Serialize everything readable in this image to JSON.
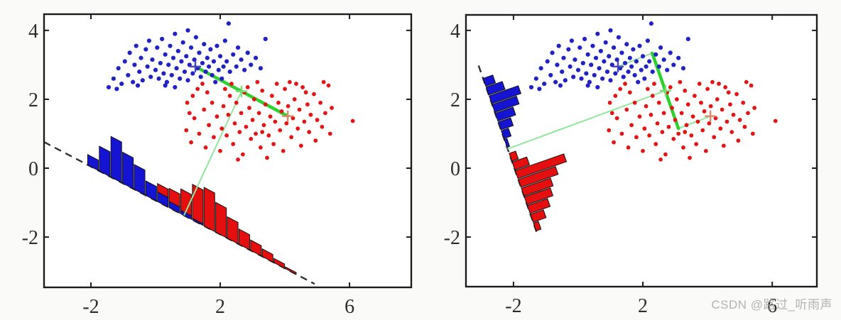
{
  "watermark": {
    "text": "CSDN @路过_听雨声"
  },
  "colors": {
    "blue_point": "#2121c4",
    "red_point": "#e41414",
    "bar_blue": "#1414d2",
    "bar_red": "#e60f0f",
    "bar_edge": "#141414",
    "dashed_line": "#323232",
    "thick_green": "#2dd12d",
    "thin_green": "#8fe89b",
    "blue_cross": "#4a44bd",
    "red_cross": "#d98a6a",
    "mid_cross": "#79dc79",
    "frame": "#1c1c1c"
  },
  "shared_points": {
    "blue": [
      [
        -1.45,
        2.35
      ],
      [
        -1.3,
        2.6
      ],
      [
        -1.15,
        2.9
      ],
      [
        -1.05,
        2.45
      ],
      [
        -0.95,
        3.1
      ],
      [
        -0.85,
        2.7
      ],
      [
        -0.8,
        3.35
      ],
      [
        -0.7,
        2.5
      ],
      [
        -0.65,
        3.0
      ],
      [
        -0.6,
        3.55
      ],
      [
        -0.5,
        2.8
      ],
      [
        -0.45,
        3.2
      ],
      [
        -0.4,
        2.55
      ],
      [
        -0.3,
        3.45
      ],
      [
        -0.25,
        2.95
      ],
      [
        -0.2,
        3.7
      ],
      [
        -0.15,
        2.65
      ],
      [
        -0.1,
        3.15
      ],
      [
        0.0,
        2.85
      ],
      [
        0.05,
        3.5
      ],
      [
        0.1,
        2.6
      ],
      [
        0.15,
        3.05
      ],
      [
        0.2,
        3.75
      ],
      [
        0.25,
        2.75
      ],
      [
        0.3,
        3.3
      ],
      [
        0.35,
        2.5
      ],
      [
        0.4,
        3.0
      ],
      [
        0.45,
        3.55
      ],
      [
        0.5,
        2.7
      ],
      [
        0.55,
        3.2
      ],
      [
        0.6,
        3.9
      ],
      [
        0.65,
        2.9
      ],
      [
        0.7,
        3.4
      ],
      [
        0.75,
        2.6
      ],
      [
        0.8,
        3.1
      ],
      [
        0.85,
        3.65
      ],
      [
        0.9,
        2.8
      ],
      [
        0.95,
        3.25
      ],
      [
        1.0,
        2.55
      ],
      [
        1.05,
        3.0
      ],
      [
        1.1,
        3.5
      ],
      [
        1.15,
        2.75
      ],
      [
        1.2,
        3.15
      ],
      [
        1.25,
        3.8
      ],
      [
        1.3,
        2.9
      ],
      [
        1.35,
        3.35
      ],
      [
        1.4,
        2.65
      ],
      [
        1.45,
        3.05
      ],
      [
        1.5,
        3.6
      ],
      [
        1.55,
        2.8
      ],
      [
        1.6,
        3.2
      ],
      [
        1.65,
        2.95
      ],
      [
        1.7,
        3.45
      ],
      [
        1.75,
        2.7
      ],
      [
        1.8,
        3.1
      ],
      [
        1.9,
        3.55
      ],
      [
        1.95,
        2.85
      ],
      [
        2.0,
        3.25
      ],
      [
        2.1,
        2.95
      ],
      [
        2.15,
        3.7
      ],
      [
        2.2,
        3.1
      ],
      [
        2.26,
        4.2
      ],
      [
        2.3,
        2.8
      ],
      [
        2.4,
        3.3
      ],
      [
        2.5,
        2.95
      ],
      [
        2.55,
        3.5
      ],
      [
        2.65,
        3.15
      ],
      [
        2.75,
        2.85
      ],
      [
        2.85,
        3.35
      ],
      [
        2.95,
        3.0
      ],
      [
        3.1,
        3.2
      ],
      [
        3.25,
        2.9
      ],
      [
        3.4,
        3.75
      ],
      [
        -1.2,
        2.3
      ],
      [
        -0.55,
        2.4
      ],
      [
        0.3,
        2.4
      ],
      [
        1.0,
        4.0
      ],
      [
        0.6,
        2.35
      ],
      [
        1.85,
        2.5
      ],
      [
        2.05,
        2.6
      ]
    ],
    "red": [
      [
        0.95,
        1.1
      ],
      [
        1.1,
        0.75
      ],
      [
        1.2,
        1.45
      ],
      [
        1.35,
        1.0
      ],
      [
        1.5,
        1.7
      ],
      [
        1.55,
        0.6
      ],
      [
        1.65,
        1.25
      ],
      [
        1.75,
        1.9
      ],
      [
        1.8,
        0.9
      ],
      [
        1.9,
        1.5
      ],
      [
        2.0,
        0.5
      ],
      [
        2.05,
        1.15
      ],
      [
        2.1,
        1.8
      ],
      [
        2.2,
        0.95
      ],
      [
        2.25,
        1.55
      ],
      [
        2.3,
        2.1
      ],
      [
        2.4,
        0.7
      ],
      [
        2.45,
        1.3
      ],
      [
        2.5,
        1.9
      ],
      [
        2.6,
        1.05
      ],
      [
        2.65,
        1.6
      ],
      [
        2.7,
        0.4
      ],
      [
        2.75,
        2.2
      ],
      [
        2.8,
        1.2
      ],
      [
        2.9,
        1.75
      ],
      [
        2.95,
        0.85
      ],
      [
        3.0,
        1.4
      ],
      [
        3.05,
        2.0
      ],
      [
        3.1,
        1.0
      ],
      [
        3.2,
        1.6
      ],
      [
        3.25,
        0.6
      ],
      [
        3.3,
        2.25
      ],
      [
        3.35,
        1.25
      ],
      [
        3.4,
        1.85
      ],
      [
        3.5,
        0.95
      ],
      [
        3.55,
        1.5
      ],
      [
        3.6,
        2.1
      ],
      [
        3.65,
        0.7
      ],
      [
        3.7,
        1.35
      ],
      [
        3.8,
        1.9
      ],
      [
        3.85,
        1.1
      ],
      [
        3.9,
        1.65
      ],
      [
        3.95,
        0.5
      ],
      [
        4.0,
        2.3
      ],
      [
        4.05,
        1.3
      ],
      [
        4.1,
        1.8
      ],
      [
        4.2,
        0.9
      ],
      [
        4.25,
        1.45
      ],
      [
        4.3,
        2.0
      ],
      [
        4.4,
        1.15
      ],
      [
        4.45,
        1.7
      ],
      [
        4.5,
        0.65
      ],
      [
        4.55,
        2.35
      ],
      [
        4.6,
        1.35
      ],
      [
        4.7,
        1.85
      ],
      [
        4.75,
        1.05
      ],
      [
        4.8,
        1.55
      ],
      [
        4.9,
        2.15
      ],
      [
        4.95,
        0.8
      ],
      [
        5.0,
        1.4
      ],
      [
        5.1,
        1.9
      ],
      [
        5.15,
        1.2
      ],
      [
        5.25,
        1.6
      ],
      [
        5.35,
        2.4
      ],
      [
        5.4,
        1.0
      ],
      [
        6.1,
        1.37
      ],
      [
        1.3,
        2.3
      ],
      [
        1.45,
        2.45
      ],
      [
        2.35,
        2.45
      ],
      [
        3.15,
        2.5
      ],
      [
        4.15,
        2.5
      ],
      [
        5.2,
        2.5
      ],
      [
        0.98,
        1.9
      ],
      [
        1.15,
        2.1
      ],
      [
        2.55,
        0.25
      ],
      [
        3.45,
        0.3
      ],
      [
        1.6,
        2.2
      ],
      [
        4.35,
        2.45
      ],
      [
        5.45,
        1.75
      ],
      [
        2.85,
        2.35
      ],
      [
        3.75,
        2.45
      ],
      [
        4.65,
        2.2
      ],
      [
        2.15,
        2.3
      ],
      [
        1.05,
        1.6
      ],
      [
        3.3,
        1.05
      ]
    ]
  },
  "chart_data": [
    {
      "id": "pca-projection-panel",
      "type": "scatter",
      "xlim": [
        -3.45,
        7.91
      ],
      "ylim": [
        -3.46,
        4.47
      ],
      "xticks": [
        -2,
        2,
        6
      ],
      "yticks": [
        -2,
        0,
        2,
        4
      ],
      "means": {
        "blue": [
          1.23,
          2.95
        ],
        "red": [
          4.09,
          1.51
        ],
        "mid": [
          2.66,
          2.23
        ]
      },
      "projection_axis": {
        "from": [
          -3.45,
          0.76
        ],
        "to": [
          4.92,
          -3.36
        ]
      },
      "thick_segments": [
        {
          "from": [
            1.23,
            2.95
          ],
          "to": [
            4.09,
            1.51
          ]
        }
      ],
      "thin_segments": [
        {
          "from": [
            2.66,
            2.23
          ],
          "to": [
            0.88,
            -1.37
          ]
        }
      ],
      "histogram": {
        "mode": "vertical",
        "bar_width": 0.33,
        "bars": [
          {
            "x": -2.1,
            "b": 0.3,
            "r": 0
          },
          {
            "x": -1.74,
            "b": 0.72,
            "r": 0
          },
          {
            "x": -1.38,
            "b": 1.18,
            "r": 0
          },
          {
            "x": -1.02,
            "b": 0.9,
            "r": 0
          },
          {
            "x": -0.66,
            "b": 0.72,
            "r": 0
          },
          {
            "x": -0.3,
            "b": 0.42,
            "r": 0
          },
          {
            "x": 0.06,
            "b": 0.28,
            "r": 0.24
          },
          {
            "x": 0.42,
            "b": 0.18,
            "r": 0.38
          },
          {
            "x": 0.78,
            "b": 0.1,
            "r": 0.62
          },
          {
            "x": 1.14,
            "b": 0.05,
            "r": 0.98
          },
          {
            "x": 1.5,
            "b": 0,
            "r": 1.12
          },
          {
            "x": 1.86,
            "b": 0,
            "r": 0.86
          },
          {
            "x": 2.22,
            "b": 0,
            "r": 0.62
          },
          {
            "x": 2.58,
            "b": 0,
            "r": 0.44
          },
          {
            "x": 2.94,
            "b": 0,
            "r": 0.3
          },
          {
            "x": 3.3,
            "b": 0,
            "r": 0.22
          },
          {
            "x": 3.66,
            "b": 0,
            "r": 0.12
          },
          {
            "x": 4.02,
            "b": 0,
            "r": 0.05
          }
        ]
      }
    },
    {
      "id": "fisher-projection-panel",
      "type": "scatter",
      "xlim": [
        -3.47,
        7.38
      ],
      "ylim": [
        -3.44,
        4.45
      ],
      "xticks": [
        -2,
        2,
        6
      ],
      "yticks": [
        -2,
        0,
        2,
        4
      ],
      "means": {
        "blue": [
          1.23,
          2.95
        ],
        "red": [
          4.09,
          1.51
        ],
        "mid": [
          2.7,
          2.25
        ]
      },
      "projection_axis": {
        "from": [
          -3.08,
          2.98
        ],
        "to": [
          -1.25,
          -1.95
        ]
      },
      "thick_segments": [
        {
          "from": [
            2.29,
            3.34
          ],
          "to": [
            3.1,
            1.15
          ]
        }
      ],
      "thin_segments": [
        {
          "from": [
            1.23,
            2.95
          ],
          "to": [
            2.29,
            3.34
          ]
        },
        {
          "from": [
            3.1,
            1.15
          ],
          "to": [
            4.09,
            1.51
          ]
        },
        {
          "from": [
            2.7,
            2.25
          ],
          "to": [
            -2.18,
            0.56
          ]
        }
      ],
      "histogram": {
        "mode": "perpendicular",
        "bar_width": 0.24,
        "bars": [
          {
            "t": 0.4,
            "b": 0.3,
            "r": 0
          },
          {
            "t": 0.67,
            "b": 0.5,
            "r": 0
          },
          {
            "t": 0.94,
            "b": 0.9,
            "r": 0
          },
          {
            "t": 1.21,
            "b": 0.75,
            "r": 0
          },
          {
            "t": 1.48,
            "b": 0.55,
            "r": 0
          },
          {
            "t": 1.75,
            "b": 0.38,
            "r": 0
          },
          {
            "t": 2.02,
            "b": 0.22,
            "r": 0
          },
          {
            "t": 2.29,
            "b": 0.08,
            "r": 0
          },
          {
            "t": 2.72,
            "b": 0,
            "r": 0.2
          },
          {
            "t": 2.99,
            "b": 0,
            "r": 0.45
          },
          {
            "t": 3.26,
            "b": 0,
            "r": 1.5
          },
          {
            "t": 3.53,
            "b": 0,
            "r": 1.15
          },
          {
            "t": 3.8,
            "b": 0,
            "r": 0.9
          },
          {
            "t": 4.07,
            "b": 0,
            "r": 0.8
          },
          {
            "t": 4.34,
            "b": 0,
            "r": 0.62
          },
          {
            "t": 4.61,
            "b": 0,
            "r": 0.4
          },
          {
            "t": 4.88,
            "b": 0,
            "r": 0.15
          }
        ]
      }
    }
  ]
}
